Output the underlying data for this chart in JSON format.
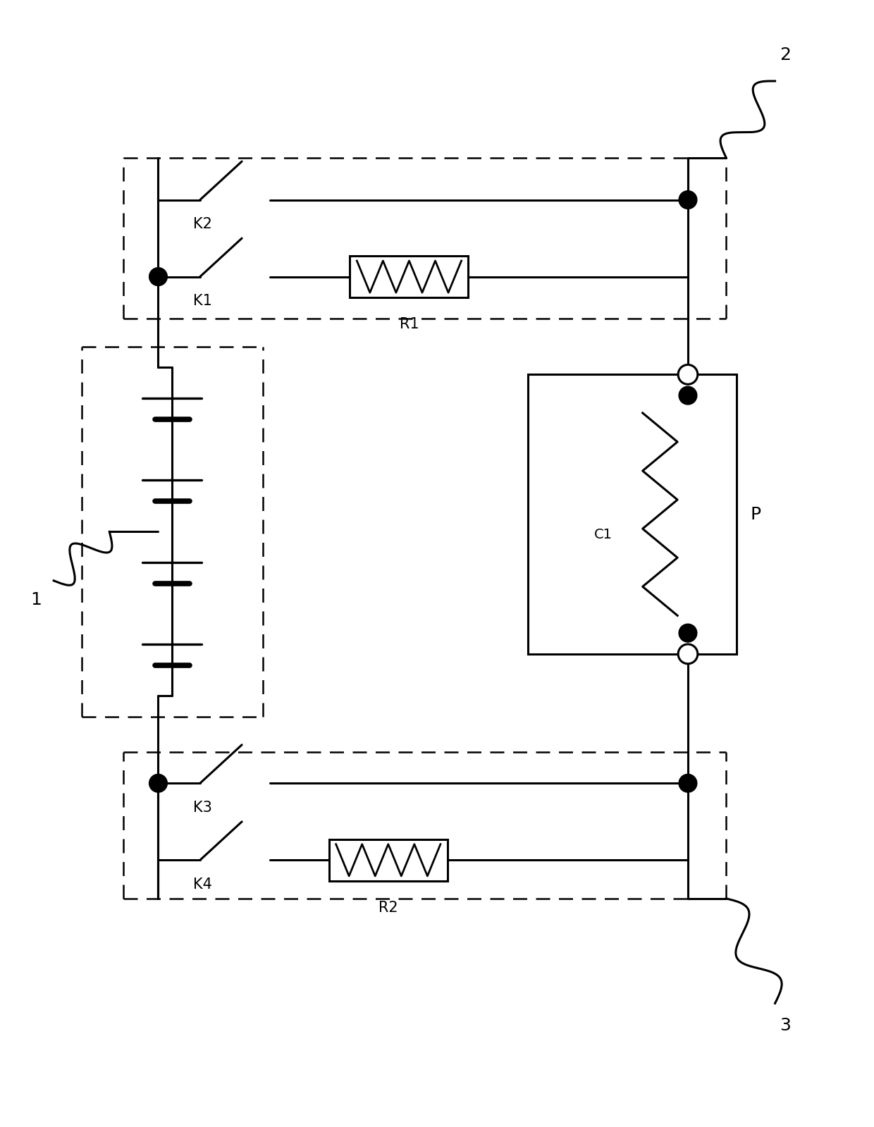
{
  "bg_color": "#ffffff",
  "line_color": "#000000",
  "lw": 2.2,
  "dlw": 1.8,
  "fig_width": 12.4,
  "fig_height": 15.99,
  "xlim": [
    0,
    12.4
  ],
  "ylim": [
    0,
    15.99
  ]
}
